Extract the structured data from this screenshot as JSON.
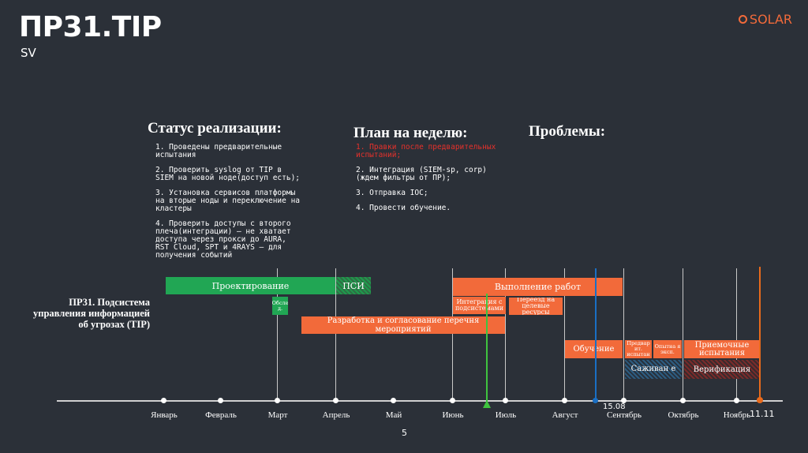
{
  "header": {
    "title": "ПР31.TIP",
    "subtitle": "SV",
    "logo": "SOLAR"
  },
  "status": {
    "heading": "Статус реализации:",
    "items": [
      "1. Проведены предварительные испытания",
      "2. Проверить syslog от TIP в SIEM на новой ноде(доступ есть);",
      "3. Установка сервисов платформы на вторые ноды и переключение на кластеры",
      "4. Проверить доступы с второго плеча(интеграции) – не хватает доступа через прокси до AURA, RST Cloud, SPT и 4RAYS – для получения событий"
    ]
  },
  "plan": {
    "heading": "План на неделю:",
    "items": [
      "1. Правки после предварительных испытаний;",
      "2. Интеграция (SIEM-sp, corp) (ждем фильтры от ПР);",
      "3. Отправка IOC;",
      "4. Провести обучение."
    ]
  },
  "problems": {
    "heading": "Проблемы:"
  },
  "project": {
    "label": "ПР31. Подсистема управления информацией об угрозах (TIP)"
  },
  "gantt": {
    "months": [
      "Январь",
      "Февраль",
      "Март",
      "Апрель",
      "Май",
      "Июнь",
      "Июль",
      "Август",
      "Сентябрь",
      "Октябрь",
      "Ноябрь"
    ],
    "bars": {
      "design": "Проектирование",
      "psi": "ПСИ",
      "survey": "Обсле д.",
      "execution": "Выполнение работ",
      "integration": "Интеграция с подсистемами",
      "migration": "Переезд на целевые ресурсы",
      "development": "Разработка и согласование перечня мероприятий",
      "training": "Обучение",
      "pre_test": "Предвар ит. испытан",
      "testing": "Опытна я эксп.",
      "acceptance": "Приемочные испытания",
      "support": "Саживан е",
      "verification": "Верификация"
    },
    "markers": {
      "date1": "15.08",
      "date2": "11.11"
    },
    "page_number": "5",
    "colors": {
      "green": "#21a654",
      "orange": "#f26a3a",
      "marker_green": "#3fc43f",
      "marker_blue": "#1a6fc4",
      "marker_orange": "#e86a1c"
    }
  }
}
